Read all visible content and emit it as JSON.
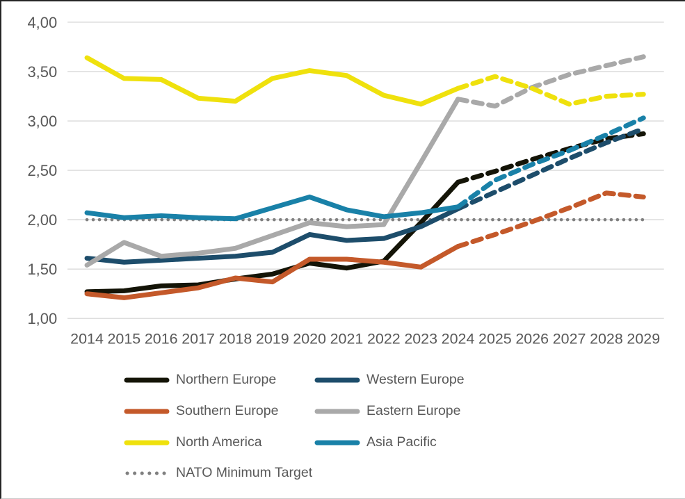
{
  "chart_data": {
    "type": "line",
    "title": "",
    "x": [
      2014,
      2015,
      2016,
      2017,
      2018,
      2019,
      2020,
      2021,
      2022,
      2023,
      2024,
      2025,
      2026,
      2027,
      2028,
      2029
    ],
    "y_ticks": [
      "4,00",
      "3,50",
      "3,00",
      "2,50",
      "2,00",
      "1,50",
      "1,00"
    ],
    "y_tick_values": [
      4.0,
      3.5,
      3.0,
      2.5,
      2.0,
      1.5,
      1.0
    ],
    "ylim": [
      1.0,
      4.0
    ],
    "grid": true,
    "legend_position": "bottom",
    "projection_start_year": 2024,
    "series": [
      {
        "name": "Northern Europe",
        "color": "#141407",
        "values": [
          1.27,
          1.28,
          1.33,
          1.34,
          1.4,
          1.45,
          1.56,
          1.51,
          1.58,
          1.97,
          2.38,
          2.49,
          2.61,
          2.72,
          2.82,
          2.87
        ]
      },
      {
        "name": "Western Europe",
        "color": "#1D4D6B",
        "values": [
          1.61,
          1.57,
          1.59,
          1.61,
          1.63,
          1.67,
          1.85,
          1.79,
          1.81,
          1.93,
          2.11,
          2.28,
          2.45,
          2.62,
          2.78,
          2.92
        ]
      },
      {
        "name": "Southern Europe",
        "color": "#C4592A",
        "values": [
          1.25,
          1.21,
          1.26,
          1.31,
          1.41,
          1.37,
          1.6,
          1.6,
          1.57,
          1.52,
          1.73,
          1.85,
          1.98,
          2.12,
          2.27,
          2.23
        ]
      },
      {
        "name": "Eastern Europe",
        "color": "#A9A9A9",
        "values": [
          1.54,
          1.77,
          1.63,
          1.66,
          1.71,
          1.84,
          1.97,
          1.93,
          1.95,
          2.58,
          3.22,
          3.15,
          3.34,
          3.47,
          3.56,
          3.65
        ]
      },
      {
        "name": "North America",
        "color": "#EFE10D",
        "values": [
          3.64,
          3.43,
          3.42,
          3.23,
          3.2,
          3.43,
          3.51,
          3.46,
          3.26,
          3.17,
          3.33,
          3.45,
          3.33,
          3.17,
          3.25,
          3.27
        ]
      },
      {
        "name": "Asia Pacific",
        "color": "#1981A8",
        "values": [
          2.07,
          2.02,
          2.04,
          2.02,
          2.01,
          2.12,
          2.23,
          2.1,
          2.03,
          2.07,
          2.13,
          2.4,
          2.56,
          2.7,
          2.86,
          3.03
        ]
      }
    ],
    "reference_line": {
      "name": "NATO Minimum Target",
      "color": "#808080",
      "value": 2.0,
      "style": "dotted"
    }
  },
  "colors": {
    "background": "#FFFFFF",
    "gridline": "#D9D9D9",
    "axis_text": "#595959"
  }
}
